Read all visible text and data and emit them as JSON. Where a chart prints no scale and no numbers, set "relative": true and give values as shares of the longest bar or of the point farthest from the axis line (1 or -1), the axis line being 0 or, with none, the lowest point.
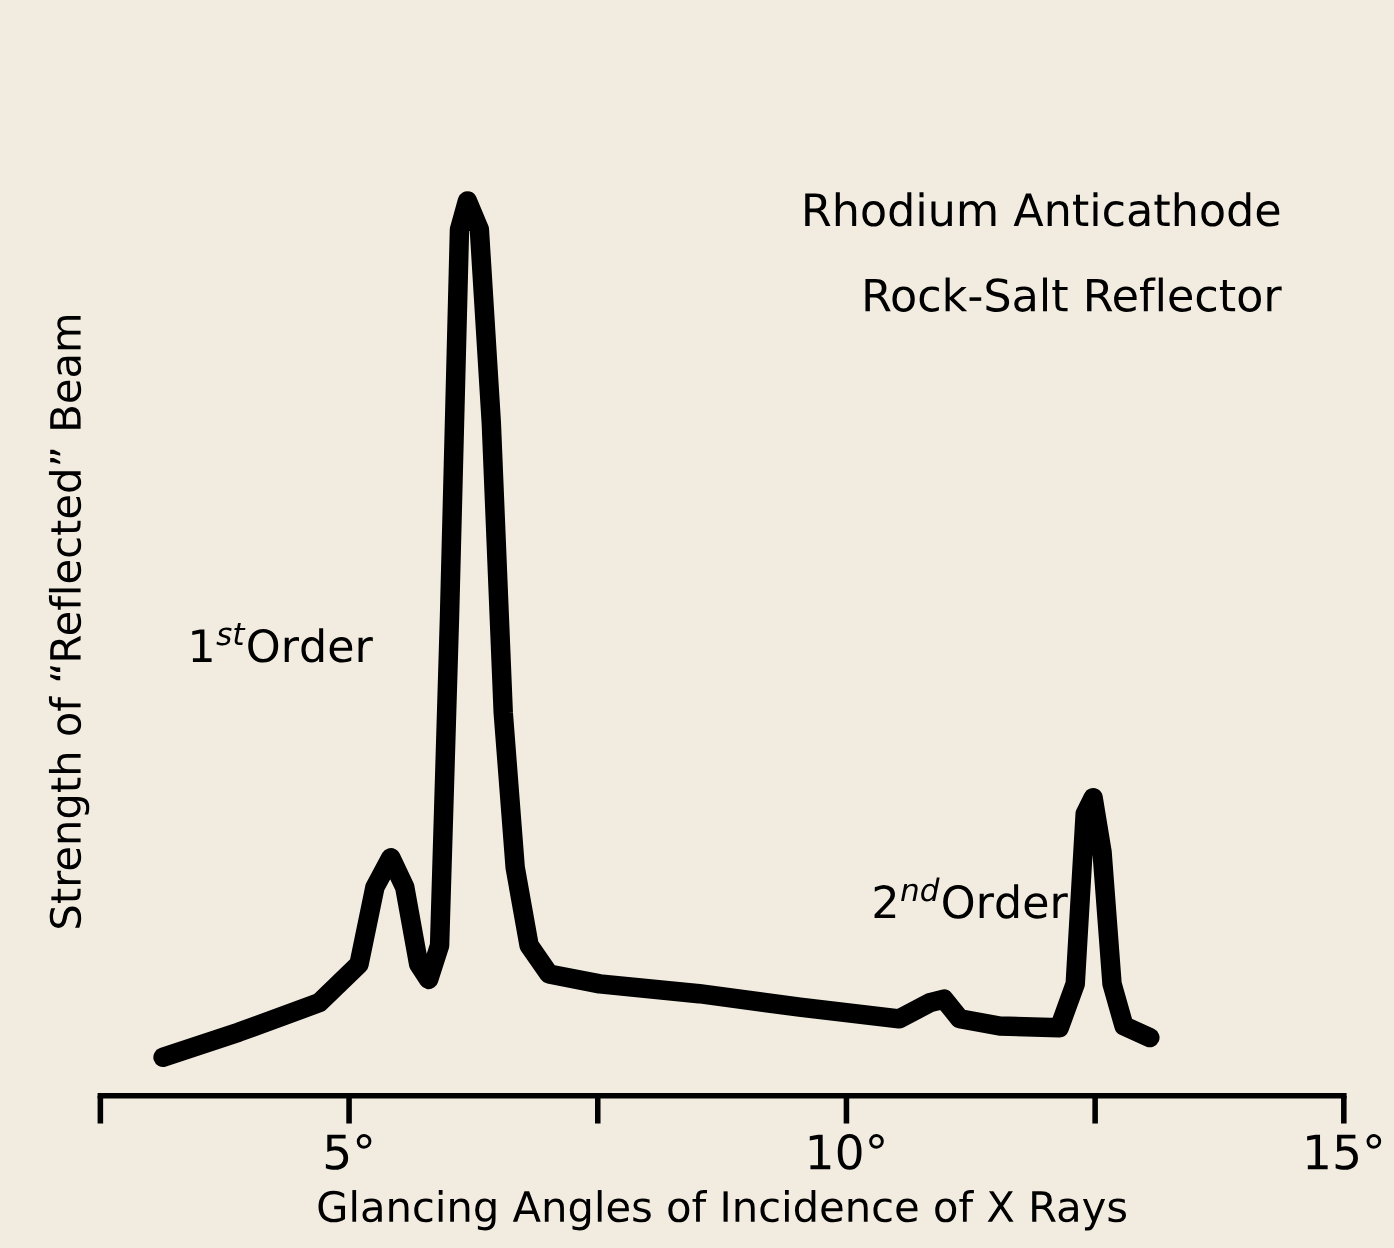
{
  "chart_data": {
    "type": "line",
    "relative": true,
    "xlabel": "Glancing Angles of Incidence of X Rays",
    "ylabel": "Strength of “Reflected” Beam",
    "annotations": [
      "Rhodium Anticathode",
      "Rock-Salt Reflector",
      "1$^{st}$Order",
      "2$^{nd}$Order"
    ],
    "xlim": [
      2.5,
      15
    ],
    "xticks": [
      {
        "value": 2.5,
        "label": null
      },
      {
        "value": 5,
        "label": "5°"
      },
      {
        "value": 7.5,
        "label": null
      },
      {
        "value": 10,
        "label": "10°"
      },
      {
        "value": 12.5,
        "label": null
      },
      {
        "value": 15,
        "label": "15°"
      }
    ],
    "grid": false,
    "legend": false,
    "marker": "none",
    "line_style": "solid",
    "series": [
      {
        "color": "#000000",
        "x": [
          3.13,
          3.89,
          4.7,
          5.1,
          5.26,
          5.42,
          5.56,
          5.7,
          5.8,
          5.91,
          6.01,
          6.11,
          6.19,
          6.31,
          6.43,
          6.55,
          6.67,
          6.81,
          7.01,
          7.52,
          8.52,
          9.53,
          10.53,
          10.84,
          10.98,
          11.14,
          11.54,
          12.14,
          12.3,
          12.4,
          12.48,
          12.57,
          12.67,
          12.79,
          13.05
        ],
        "values": [
          0.043,
          0.071,
          0.104,
          0.147,
          0.233,
          0.266,
          0.233,
          0.147,
          0.13,
          0.168,
          0.536,
          0.968,
          1.0,
          0.968,
          0.752,
          0.428,
          0.255,
          0.168,
          0.136,
          0.125,
          0.114,
          0.099,
          0.086,
          0.104,
          0.108,
          0.086,
          0.078,
          0.076,
          0.125,
          0.315,
          0.333,
          0.272,
          0.125,
          0.078,
          0.065
        ]
      }
    ]
  }
}
